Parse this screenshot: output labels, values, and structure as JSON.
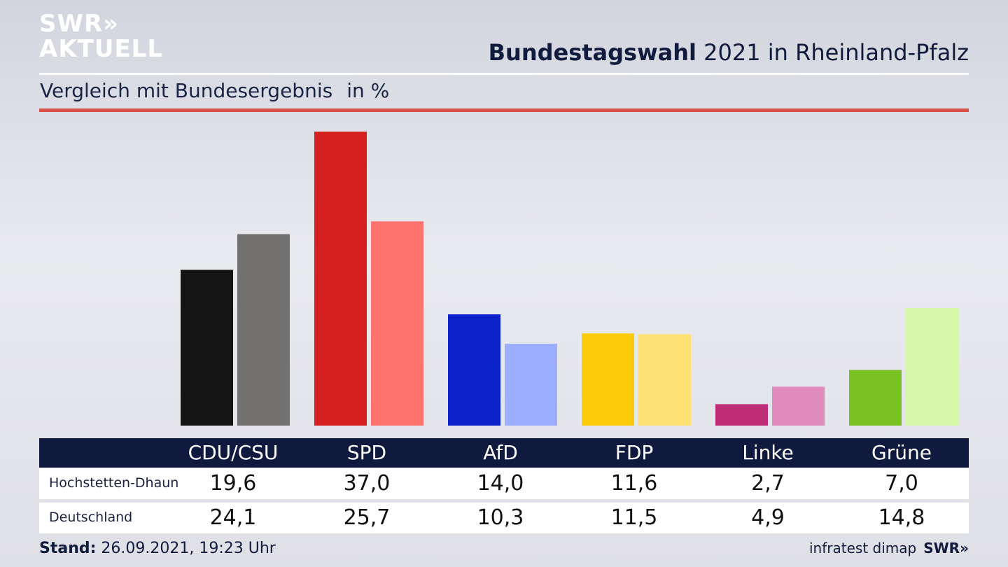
{
  "logo": {
    "line1": "SWR»",
    "line2": "AKTUELL"
  },
  "header": {
    "title_bold": "Bundestagswahl",
    "title_rest": " 2021 in Rheinland-Pfalz",
    "subtitle": "Vergleich mit Bundesergebnis",
    "unit": "in %"
  },
  "table": {
    "parties": [
      "CDU/CSU",
      "SPD",
      "AfD",
      "FDP",
      "Linke",
      "Grüne"
    ],
    "rows": [
      {
        "label": "Hochstetten-Dhaun",
        "values": [
          "19,6",
          "37,0",
          "14,0",
          "11,6",
          "2,7",
          "7,0"
        ]
      },
      {
        "label": "Deutschland",
        "values": [
          "24,1",
          "25,7",
          "10,3",
          "11,5",
          "4,9",
          "14,8"
        ]
      }
    ]
  },
  "footer": {
    "stand_label": "Stand:",
    "stand_value": " 26.09.2021, 19:23 Uhr",
    "source": "infratest dimap",
    "brand": "SWR»"
  },
  "colors": {
    "Hochstetten-Dhaun": [
      "#141414",
      "#d61f1f",
      "#0a22c8",
      "#fccb0a",
      "#be2e78",
      "#7ac122"
    ],
    "Deutschland": [
      "#737170",
      "#ff736e",
      "#9dadff",
      "#fde174",
      "#e08cbc",
      "#d4f7a8"
    ]
  },
  "chart_data": {
    "type": "bar",
    "categories": [
      "CDU/CSU",
      "SPD",
      "AfD",
      "FDP",
      "Linke",
      "Grüne"
    ],
    "series": [
      {
        "name": "Hochstetten-Dhaun",
        "values": [
          19.6,
          37.0,
          14.0,
          11.6,
          2.7,
          7.0
        ]
      },
      {
        "name": "Deutschland",
        "values": [
          24.1,
          25.7,
          10.3,
          11.5,
          4.9,
          14.8
        ]
      }
    ],
    "ylim": [
      0,
      37.0
    ],
    "grid": false,
    "title": "Bundestagswahl 2021 in Rheinland-Pfalz",
    "subtitle": "Vergleich mit Bundesergebnis",
    "ylabel": "in %"
  }
}
